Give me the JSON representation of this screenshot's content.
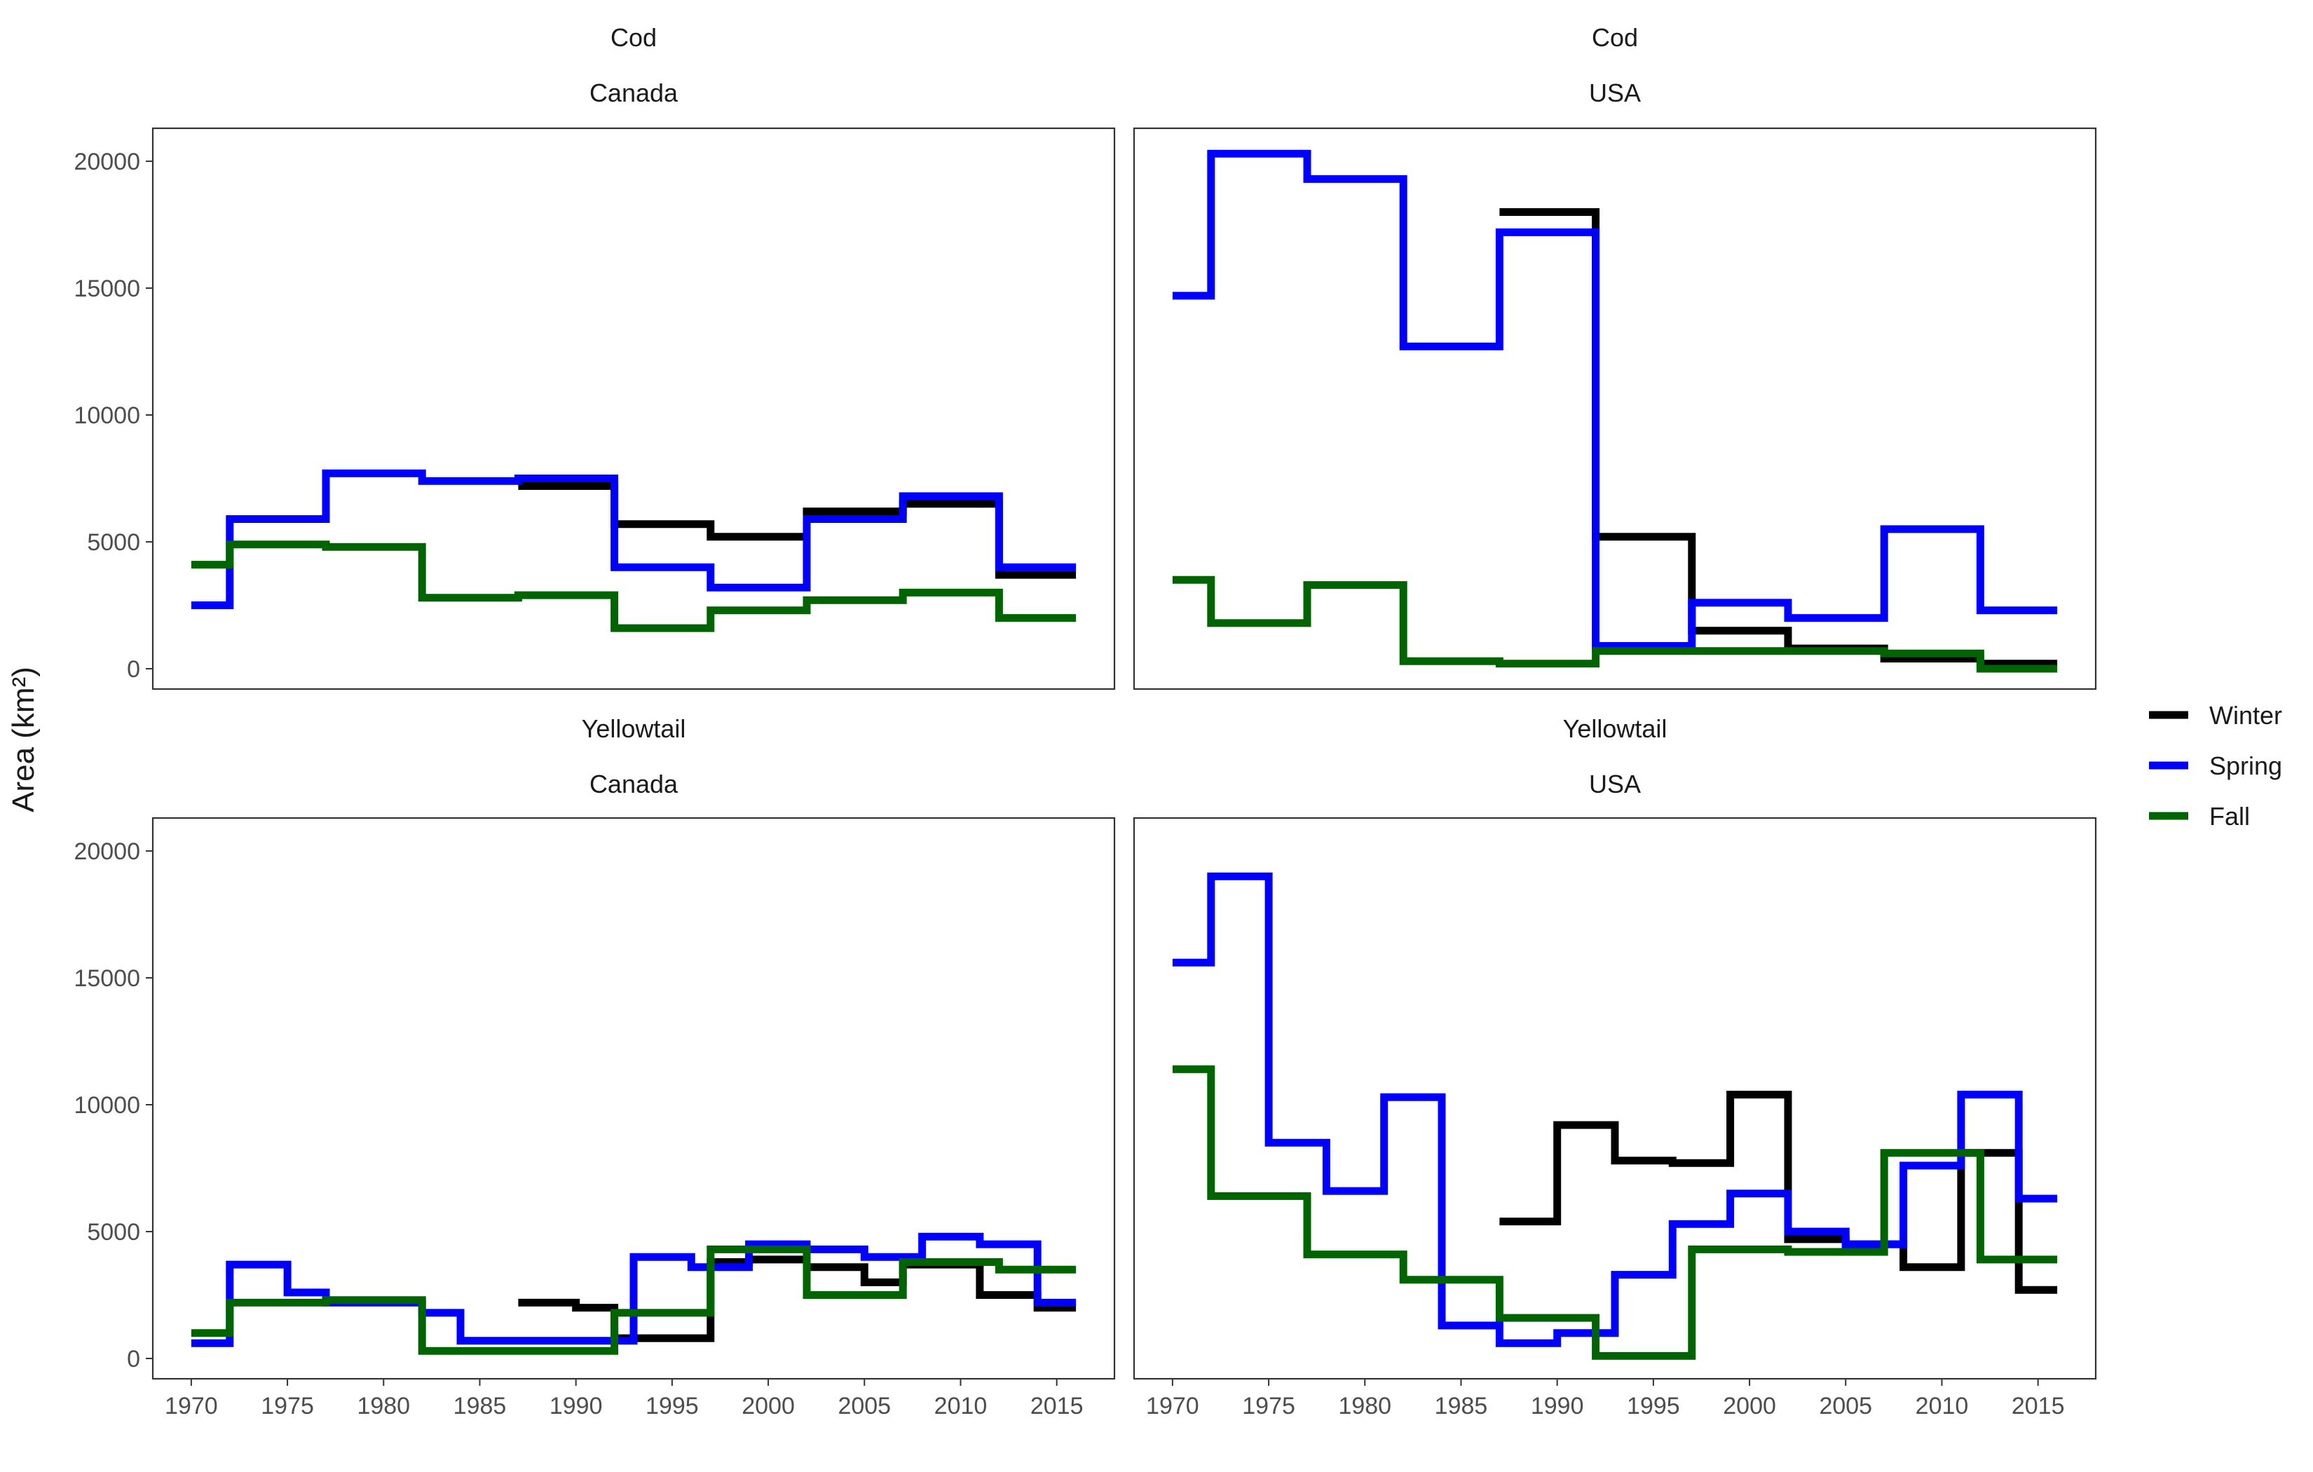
{
  "chart_data": {
    "type": "line",
    "step": true,
    "ylabel": "Area (km²)",
    "xlabel": "",
    "xlim": [
      1968,
      2018
    ],
    "ylim": [
      -800,
      21300
    ],
    "x_ticks": [
      1970,
      1975,
      1980,
      1985,
      1990,
      1995,
      2000,
      2005,
      2010,
      2015
    ],
    "y_ticks": [
      0,
      5000,
      10000,
      15000,
      20000
    ],
    "legend": {
      "position": "right",
      "entries": [
        "Winter",
        "Spring",
        "Fall"
      ]
    },
    "colors": {
      "Winter": "#000000",
      "Spring": "#0000ff",
      "Fall": "#006400"
    },
    "panels": [
      {
        "species": "Cod",
        "country": "Canada",
        "series": [
          {
            "name": "Winter",
            "x": [
              1987,
              1992,
              1997,
              2002,
              2007,
              2012,
              2016
            ],
            "y": [
              7200,
              5700,
              5200,
              6200,
              6500,
              3700,
              3700
            ]
          },
          {
            "name": "Spring",
            "x": [
              1970,
              1972,
              1977,
              1982,
              1987,
              1992,
              1997,
              2002,
              2007,
              2012,
              2016
            ],
            "y": [
              2500,
              5900,
              7700,
              7400,
              7500,
              4000,
              3200,
              5900,
              6800,
              4000,
              4000
            ]
          },
          {
            "name": "Fall",
            "x": [
              1970,
              1972,
              1977,
              1982,
              1987,
              1992,
              1997,
              2002,
              2007,
              2012,
              2016
            ],
            "y": [
              4100,
              4900,
              4800,
              2800,
              2900,
              1600,
              2300,
              2700,
              3000,
              2000,
              2000
            ]
          }
        ]
      },
      {
        "species": "Cod",
        "country": "USA",
        "series": [
          {
            "name": "Winter",
            "x": [
              1987,
              1992,
              1997,
              2002,
              2007,
              2012,
              2016
            ],
            "y": [
              18000,
              5200,
              1500,
              800,
              400,
              200,
              200
            ]
          },
          {
            "name": "Spring",
            "x": [
              1970,
              1972,
              1977,
              1982,
              1987,
              1992,
              1997,
              2002,
              2007,
              2012,
              2016
            ],
            "y": [
              14700,
              20300,
              19300,
              12700,
              17200,
              900,
              2600,
              2000,
              5500,
              2300,
              2300
            ]
          },
          {
            "name": "Fall",
            "x": [
              1970,
              1972,
              1977,
              1982,
              1987,
              1992,
              1997,
              2002,
              2007,
              2012,
              2016
            ],
            "y": [
              3500,
              1800,
              3300,
              300,
              200,
              700,
              700,
              700,
              600,
              0,
              0
            ]
          }
        ]
      },
      {
        "species": "Yellowtail",
        "country": "Canada",
        "series": [
          {
            "name": "Winter",
            "x": [
              1987,
              1990,
              1992,
              1997,
              1999,
              2002,
              2005,
              2007,
              2011,
              2014,
              2016
            ],
            "y": [
              2200,
              2000,
              800,
              3800,
              3900,
              3600,
              3000,
              3700,
              2500,
              2000,
              2000
            ]
          },
          {
            "name": "Spring",
            "x": [
              1970,
              1972,
              1975,
              1977,
              1982,
              1984,
              1987,
              1990,
              1993,
              1996,
              1999,
              2002,
              2005,
              2008,
              2011,
              2014,
              2016
            ],
            "y": [
              600,
              3700,
              2600,
              2200,
              1800,
              700,
              700,
              700,
              4000,
              3600,
              4500,
              4300,
              4000,
              4800,
              4500,
              2200,
              2200
            ]
          },
          {
            "name": "Fall",
            "x": [
              1970,
              1972,
              1977,
              1982,
              1987,
              1992,
              1997,
              2002,
              2007,
              2012,
              2016
            ],
            "y": [
              1000,
              2200,
              2300,
              300,
              300,
              1800,
              4300,
              2500,
              3800,
              3500,
              3500
            ]
          }
        ]
      },
      {
        "species": "Yellowtail",
        "country": "USA",
        "series": [
          {
            "name": "Winter",
            "x": [
              1987,
              1990,
              1993,
              1996,
              1999,
              2002,
              2005,
              2008,
              2011,
              2014,
              2016
            ],
            "y": [
              5400,
              9200,
              7800,
              7700,
              10400,
              4700,
              4500,
              3600,
              8100,
              2700,
              2700
            ]
          },
          {
            "name": "Spring",
            "x": [
              1970,
              1972,
              1975,
              1978,
              1981,
              1984,
              1987,
              1990,
              1993,
              1996,
              1999,
              2002,
              2005,
              2008,
              2011,
              2014,
              2016
            ],
            "y": [
              15600,
              19000,
              8500,
              6600,
              10300,
              1300,
              600,
              1000,
              3300,
              5300,
              6500,
              5000,
              4500,
              7600,
              10400,
              6300,
              6300
            ]
          },
          {
            "name": "Fall",
            "x": [
              1970,
              1972,
              1977,
              1982,
              1987,
              1992,
              1997,
              2002,
              2007,
              2012,
              2016
            ],
            "y": [
              11400,
              6400,
              4100,
              3100,
              1600,
              100,
              4300,
              4200,
              8100,
              3900,
              3900
            ]
          }
        ]
      }
    ]
  }
}
